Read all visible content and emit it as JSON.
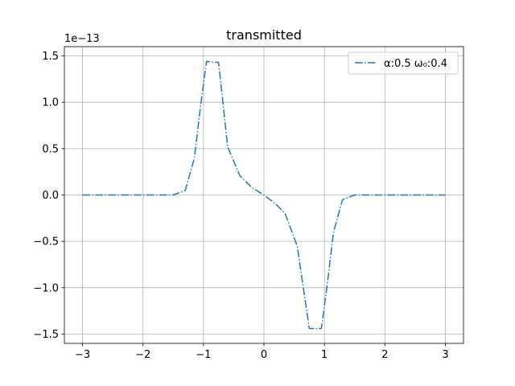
{
  "chart_data": {
    "type": "line",
    "title": "transmitted",
    "xlabel": "",
    "ylabel": "",
    "y_offset_text": "1e−13",
    "xlim": [
      -3.3,
      3.3
    ],
    "ylim": [
      -1.6,
      1.6
    ],
    "x_ticks": [
      -3,
      -2,
      -1,
      0,
      1,
      2,
      3
    ],
    "x_tick_labels": [
      "−3",
      "−2",
      "−1",
      "0",
      "1",
      "2",
      "3"
    ],
    "y_ticks": [
      -1.5,
      -1.0,
      -0.5,
      0.0,
      0.5,
      1.0,
      1.5
    ],
    "y_tick_labels": [
      "−1.5",
      "−1.0",
      "−0.5",
      "0.0",
      "0.5",
      "1.0",
      "1.5"
    ],
    "grid": true,
    "legend_position": "top-right",
    "colors": {
      "series": "#1f77b4",
      "grid": "#b0b0b0",
      "axes": "#000000",
      "legend_border": "#cccccc"
    },
    "series": [
      {
        "name": "α:0.5 ω₀:0.4",
        "line_style": "dash-dot",
        "x": [
          -3.0,
          -2.5,
          -2.0,
          -1.7,
          -1.5,
          -1.3,
          -1.15,
          -1.05,
          -0.95,
          -0.75,
          -0.6,
          -0.4,
          -0.2,
          0.0,
          0.2,
          0.35,
          0.55,
          0.75,
          0.95,
          1.05,
          1.15,
          1.3,
          1.5,
          1.7,
          2.0,
          2.5,
          3.0
        ],
        "values": [
          0.0,
          0.0,
          0.0,
          0.0,
          0.0,
          0.05,
          0.4,
          0.95,
          1.44,
          1.43,
          0.52,
          0.21,
          0.08,
          0.0,
          -0.1,
          -0.2,
          -0.55,
          -1.44,
          -1.44,
          -0.95,
          -0.4,
          -0.05,
          0.0,
          0.0,
          0.0,
          0.0,
          0.0
        ]
      }
    ]
  }
}
